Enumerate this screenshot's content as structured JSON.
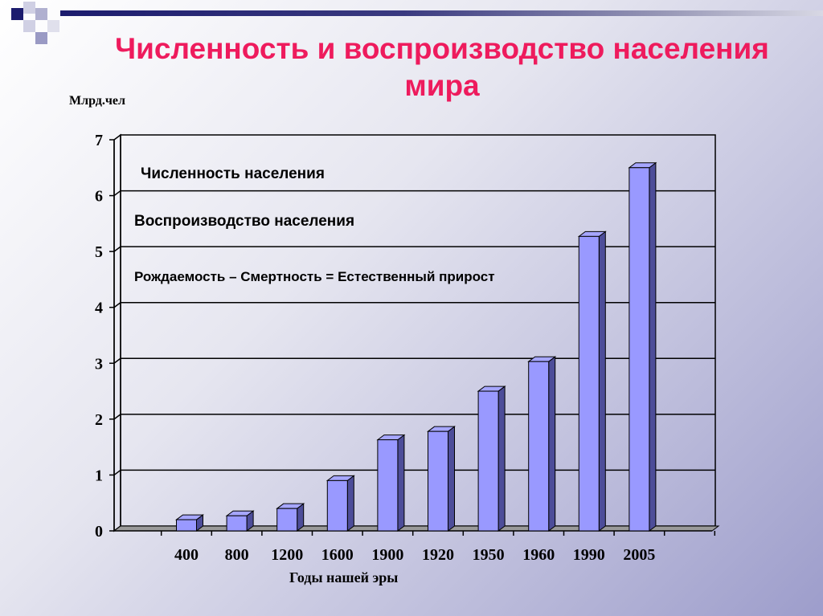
{
  "slide": {
    "title_line1": "Численность  и воспроизводство населения",
    "title_line2": "мира",
    "colors": {
      "title": "#ee1b5d",
      "bar_front": "#9999ff",
      "bar_top": "#a6a6ff",
      "bar_side": "#4d4d99",
      "header_dark": "#1c1c6e"
    }
  },
  "notes": {
    "line1": "Численность населения",
    "line2": "Воспроизводство населения",
    "line3": "Рождаемость – Смертность = Естественный  прирост"
  },
  "chart_data": {
    "type": "bar",
    "ylabel": "Млрд.чел",
    "xlabel": "Годы нашей эры",
    "categories": [
      "400",
      "800",
      "1200",
      "1600",
      "1900",
      "1920",
      "1950",
      "1960",
      "1990",
      "2005"
    ],
    "values": [
      0.2,
      0.27,
      0.4,
      0.9,
      1.63,
      1.78,
      2.5,
      3.03,
      5.27,
      6.5
    ],
    "ylim": [
      0,
      7
    ],
    "yticks": [
      0,
      1,
      2,
      3,
      4,
      5,
      6,
      7
    ],
    "grid": true,
    "style": "3d"
  }
}
